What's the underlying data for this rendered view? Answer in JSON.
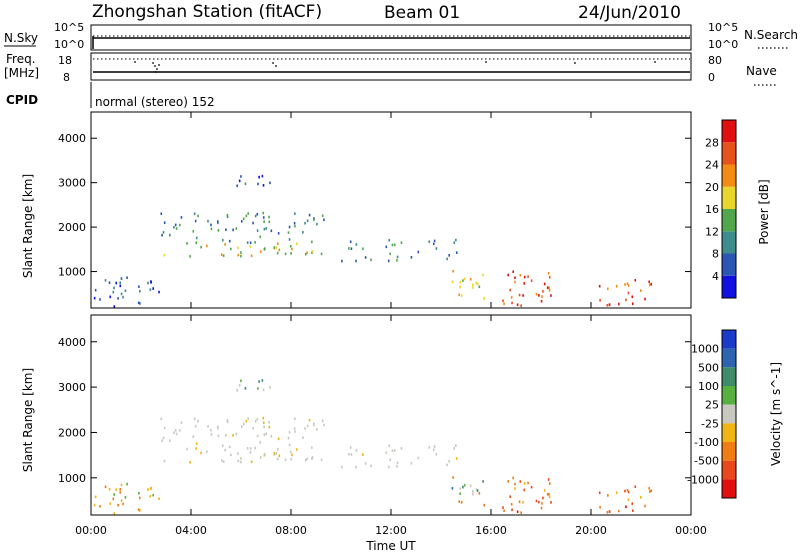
{
  "header": {
    "station": "Zhongshan Station (fitACF)",
    "beam": "Beam 01",
    "date": "24/Jun/2010"
  },
  "strip": {
    "nsky_label": "N.Sky",
    "nsky_ticks": [
      "10^5",
      "10^0"
    ],
    "nsearch_label": "N.Search",
    "nsearch_ticks": [
      "10^5",
      "10^0"
    ],
    "freq_label_1": "Freq.",
    "freq_label_2": "[MHz]",
    "freq_ticks": [
      "18",
      "8"
    ],
    "nave_label": "Nave",
    "nave_ticks": [
      "80",
      "0"
    ],
    "cpid_label": "CPID",
    "cpid_text": "normal (stereo) 152"
  },
  "axes": {
    "xlabel": "Time UT",
    "ylabel": "Slant Range [km]",
    "xticks": [
      "00:00",
      "04:00",
      "08:00",
      "12:00",
      "16:00",
      "20:00",
      "00:00"
    ],
    "yticks": [
      "1000",
      "2000",
      "3000",
      "4000"
    ]
  },
  "chart_data": [
    {
      "type": "heatmap",
      "name": "power",
      "x_range_hours": [
        0,
        24
      ],
      "y_range_km": [
        180,
        4590
      ],
      "colorbar": {
        "label": "Power [dB]",
        "ticks": [
          "4",
          "8",
          "12",
          "16",
          "20",
          "24",
          "28"
        ],
        "range": [
          0,
          30
        ],
        "colors": [
          "#1010e0",
          "#2a56b4",
          "#3f8c8c",
          "#51a84c",
          "#e8d62c",
          "#f28c14",
          "#e8521c",
          "#e01010"
        ]
      },
      "echo_regions": [
        {
          "t": [
            0.1,
            2.7
          ],
          "r": [
            180,
            850
          ],
          "level": 1
        },
        {
          "t": [
            2.7,
            9.3
          ],
          "r": [
            1300,
            1600
          ],
          "level": 4
        },
        {
          "t": [
            2.7,
            9.3
          ],
          "r": [
            1600,
            2300
          ],
          "level": 2
        },
        {
          "t": [
            5.8,
            7.3
          ],
          "r": [
            2900,
            3300
          ],
          "level": 1
        },
        {
          "t": [
            10.0,
            14.7
          ],
          "r": [
            1200,
            1700
          ],
          "level": 2
        },
        {
          "t": [
            14.1,
            15.8
          ],
          "r": [
            300,
            1000
          ],
          "level": 4
        },
        {
          "t": [
            16.3,
            18.5
          ],
          "r": [
            200,
            1000
          ],
          "level": 6
        },
        {
          "t": [
            20.3,
            22.5
          ],
          "r": [
            200,
            900
          ],
          "level": 6
        }
      ]
    },
    {
      "type": "heatmap",
      "name": "velocity",
      "x_range_hours": [
        0,
        24
      ],
      "y_range_km": [
        180,
        4590
      ],
      "colorbar": {
        "label": "Velocity [m s^-1]",
        "ticks": [
          "1000",
          "500",
          "100",
          "25",
          "-25",
          "-100",
          "-500",
          "-1000"
        ],
        "colors": [
          "#1a3cc8",
          "#2c64b0",
          "#3f8c6c",
          "#58b040",
          "#c8c8c0",
          "#f0b414",
          "#f07c14",
          "#e8481c",
          "#e01010"
        ]
      },
      "echo_regions": [
        {
          "t": [
            0.1,
            2.7
          ],
          "r": [
            180,
            850
          ],
          "class": "slow-negative"
        },
        {
          "t": [
            2.7,
            9.3
          ],
          "r": [
            1300,
            2300
          ],
          "class": "ground-scatter"
        },
        {
          "t": [
            10.0,
            14.7
          ],
          "r": [
            1200,
            1700
          ],
          "class": "ground-scatter"
        },
        {
          "t": [
            14.1,
            15.8
          ],
          "r": [
            300,
            1000
          ],
          "class": "mixed"
        },
        {
          "t": [
            16.3,
            18.5
          ],
          "r": [
            200,
            1000
          ],
          "class": "negative"
        },
        {
          "t": [
            20.3,
            22.5
          ],
          "r": [
            200,
            900
          ],
          "class": "negative"
        }
      ]
    }
  ]
}
